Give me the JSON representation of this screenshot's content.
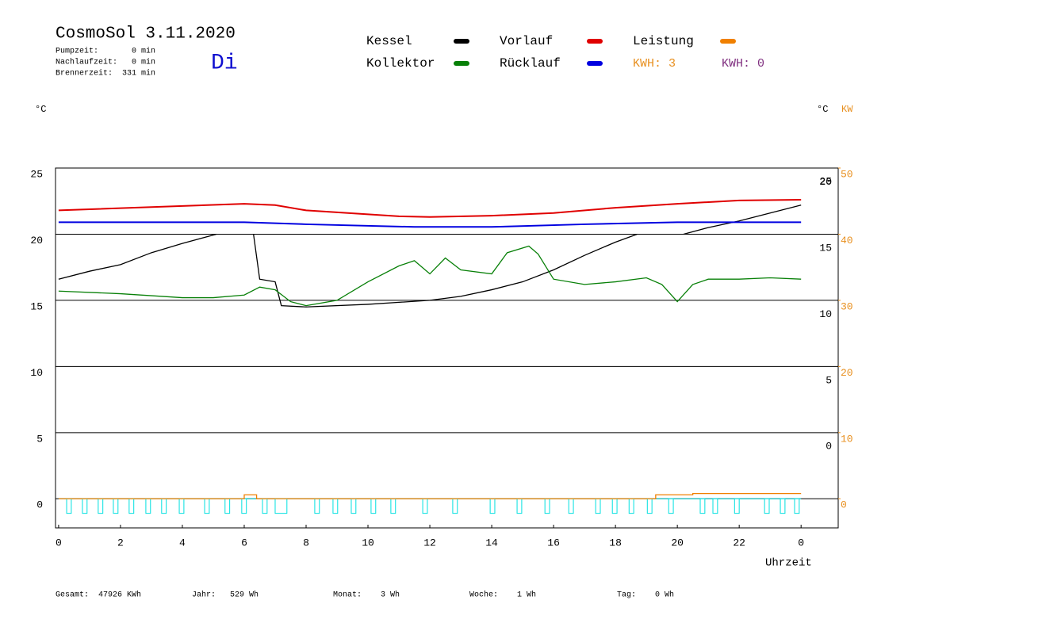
{
  "chart_data": {
    "type": "line",
    "title": "CosmoSol 3.11.2020",
    "info": [
      "Pumpzeit:       0 min",
      "Nachlaufzeit:   0 min",
      "Brennerzeit:  331 min"
    ],
    "day": "Di",
    "y_unit": "°C",
    "y_unit_right": "°C",
    "y2_unit": "KW",
    "xlabel": "Uhrzeit",
    "kwh": [
      {
        "label": "KWH: 3",
        "color": "#e89020"
      },
      {
        "label": "KWH: 0",
        "color": "#803080"
      }
    ],
    "footer": [
      "Gesamt:  47926 KWh",
      "Jahr:   529 Wh",
      "Monat:    3 Wh",
      "Woche:    1 Wh",
      "Tag:    0 Wh"
    ],
    "xlim": [
      -0.1,
      25.2
    ],
    "xticks": [
      0,
      2,
      4,
      6,
      8,
      10,
      12,
      14,
      16,
      18,
      20,
      22,
      {
        "value": 24,
        "label": "0"
      }
    ],
    "ylim": [
      -2.2,
      25
    ],
    "yticks": [
      0,
      5,
      10,
      15,
      20,
      25
    ],
    "y2lim": [
      -4.4,
      50
    ],
    "y2ticks": [
      0,
      10,
      20,
      30,
      40,
      50
    ],
    "grid": true,
    "series": [
      {
        "name": "Kessel",
        "color": "#000000",
        "x": [
          0,
          1,
          2,
          3,
          4,
          5.1,
          5.7,
          6.3,
          6.5,
          7,
          7.2,
          8,
          10,
          12,
          13,
          14,
          15,
          16,
          17,
          18,
          18.7,
          19.5,
          20.2,
          21,
          22,
          23,
          24
        ],
        "values": [
          16.6,
          17.2,
          17.7,
          18.6,
          19.3,
          20,
          null,
          20,
          16.6,
          16.4,
          14.6,
          14.5,
          14.7,
          15.0,
          15.3,
          15.8,
          16.4,
          17.3,
          18.4,
          19.4,
          20,
          null,
          20,
          20.5,
          21.0,
          21.6,
          22.2
        ]
      },
      {
        "name": "Kollektor",
        "color": "#088008",
        "x": [
          0,
          2,
          4,
          5,
          6,
          6.5,
          7,
          7.5,
          8,
          9,
          10,
          11,
          11.5,
          12,
          12.5,
          13,
          14,
          14.5,
          15.2,
          15.5,
          16,
          17,
          18,
          19,
          19.5,
          20,
          20.5,
          21,
          22,
          23,
          24
        ],
        "values": [
          15.7,
          15.5,
          15.2,
          15.2,
          15.4,
          16.0,
          15.8,
          14.9,
          14.6,
          15.0,
          16.4,
          17.6,
          18.0,
          17.0,
          18.2,
          17.3,
          17.0,
          18.6,
          19.1,
          18.5,
          16.6,
          16.2,
          16.4,
          16.7,
          16.2,
          14.9,
          16.2,
          16.6,
          16.6,
          16.7,
          16.6
        ]
      },
      {
        "name": "Vorlauf",
        "color": "#e00000",
        "x": [
          0,
          6,
          7,
          8,
          11,
          12,
          14,
          16,
          18,
          20,
          22,
          24
        ],
        "values": [
          21.8,
          22.3,
          22.2,
          21.8,
          21.35,
          21.3,
          21.4,
          21.6,
          22.0,
          22.3,
          22.55,
          22.6
        ]
      },
      {
        "name": "Rücklauf",
        "color": "#0000e0",
        "x": [
          0,
          6,
          8,
          11.5,
          14,
          17,
          20,
          24
        ],
        "values": [
          20.9,
          20.9,
          20.75,
          20.55,
          20.55,
          20.75,
          20.9,
          20.9
        ]
      },
      {
        "name": "Leistung",
        "color": "#f08000",
        "axis": "y2",
        "x": [
          0,
          6,
          6,
          6.4,
          6.4,
          19.3,
          19.3,
          20.5,
          20.5,
          24
        ],
        "values": [
          0,
          0,
          0.6,
          0.6,
          0,
          0,
          0.6,
          0.6,
          0.8,
          0.8
        ]
      }
    ],
    "pulses": {
      "color": "#00e0e0",
      "bottom": -1.1,
      "start": [
        0.26,
        0.77,
        1.28,
        1.77,
        2.28,
        2.82,
        3.33,
        3.9,
        4.72,
        5.38,
        5.92,
        6.59,
        7.0,
        8.28,
        8.87,
        9.46,
        10.1,
        10.74,
        11.77,
        12.74,
        13.95,
        14.82,
        15.72,
        16.49,
        17.36,
        17.9,
        18.44,
        19.03,
        19.72,
        20.74,
        21.15,
        21.85,
        22.82,
        23.33,
        23.79
      ],
      "end": [
        0.41,
        0.92,
        1.43,
        1.92,
        2.43,
        2.97,
        3.48,
        4.05,
        4.87,
        5.53,
        6.07,
        6.74,
        7.38,
        8.43,
        9.02,
        9.61,
        10.25,
        10.89,
        11.92,
        12.89,
        14.1,
        14.97,
        15.87,
        16.64,
        17.51,
        18.05,
        18.59,
        19.18,
        19.87,
        20.89,
        21.3,
        22.0,
        22.97,
        23.48,
        23.94
      ]
    }
  }
}
